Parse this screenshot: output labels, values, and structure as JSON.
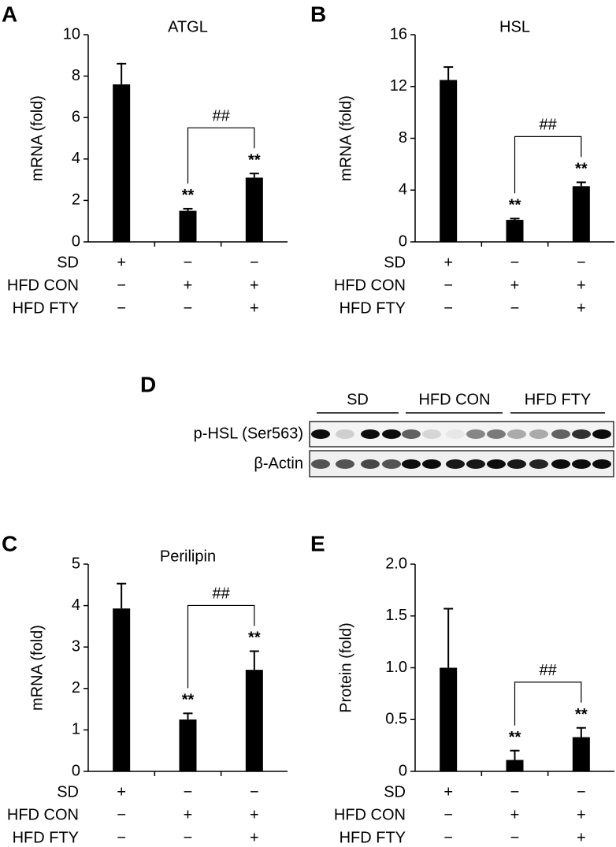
{
  "chart_data": [
    {
      "type": "bar",
      "panel": "A",
      "title": "ATGL",
      "y_label": "mRNA (fold)",
      "color": "#000000",
      "values": [
        7.6,
        1.5,
        3.1
      ],
      "errors": [
        1.0,
        0.1,
        0.2
      ],
      "stars": [
        null,
        "**",
        "**"
      ],
      "bracket": "##",
      "ylim": [
        0,
        10
      ],
      "yticks": [
        0,
        2,
        4,
        6,
        8,
        10
      ],
      "conditions": [
        {
          "label": "SD",
          "signs": [
            "+",
            "−",
            "−"
          ]
        },
        {
          "label": "HFD CON",
          "signs": [
            "−",
            "+",
            "+"
          ]
        },
        {
          "label": "HFD FTY",
          "signs": [
            "−",
            "−",
            "+"
          ]
        }
      ]
    },
    {
      "type": "bar",
      "panel": "B",
      "title": "HSL",
      "y_label": "mRNA (fold)",
      "color": "#000000",
      "values": [
        12.5,
        1.7,
        4.3
      ],
      "errors": [
        1.0,
        0.1,
        0.3
      ],
      "stars": [
        null,
        "**",
        "**"
      ],
      "bracket": "##",
      "ylim": [
        0,
        16
      ],
      "yticks": [
        0,
        4,
        8,
        12,
        16
      ],
      "conditions": [
        {
          "label": "SD",
          "signs": [
            "+",
            "−",
            "−"
          ]
        },
        {
          "label": "HFD CON",
          "signs": [
            "−",
            "+",
            "+"
          ]
        },
        {
          "label": "HFD FTY",
          "signs": [
            "−",
            "−",
            "+"
          ]
        }
      ]
    },
    {
      "type": "bar",
      "panel": "C",
      "title": "Perilipin",
      "y_label": "mRNA (fold)",
      "color": "#000000",
      "values": [
        3.93,
        1.25,
        2.45
      ],
      "errors": [
        0.6,
        0.15,
        0.45
      ],
      "stars": [
        null,
        "**",
        "**"
      ],
      "bracket": "##",
      "ylim": [
        0,
        5
      ],
      "yticks": [
        0,
        1,
        2,
        3,
        4,
        5
      ],
      "conditions": [
        {
          "label": "SD",
          "signs": [
            "+",
            "−",
            "−"
          ]
        },
        {
          "label": "HFD CON",
          "signs": [
            "−",
            "+",
            "+"
          ]
        },
        {
          "label": "HFD FTY",
          "signs": [
            "−",
            "−",
            "+"
          ]
        }
      ]
    },
    {
      "type": "bar",
      "panel": "E",
      "y_label": "Protein (fold)",
      "color": "#000000",
      "values": [
        1.0,
        0.11,
        0.33
      ],
      "errors": [
        0.57,
        0.09,
        0.09
      ],
      "stars": [
        null,
        "**",
        "**"
      ],
      "bracket": "##",
      "ylim": [
        0,
        2
      ],
      "yticks": [
        0,
        0.5,
        {
          "value": 1,
          "label": "1.0"
        },
        1.5,
        {
          "value": 2,
          "label": "2.0"
        }
      ],
      "conditions": [
        {
          "label": "SD",
          "signs": [
            "+",
            "−",
            "−"
          ]
        },
        {
          "label": "HFD CON",
          "signs": [
            "−",
            "+",
            "+"
          ]
        },
        {
          "label": "HFD FTY",
          "signs": [
            "−",
            "−",
            "+"
          ]
        }
      ]
    }
  ],
  "blot": {
    "panel": "D",
    "groups": [
      "SD",
      "HFD CON",
      "HFD FTY"
    ],
    "rows": [
      "p-HSL (Ser563)",
      "β-Actin"
    ]
  }
}
